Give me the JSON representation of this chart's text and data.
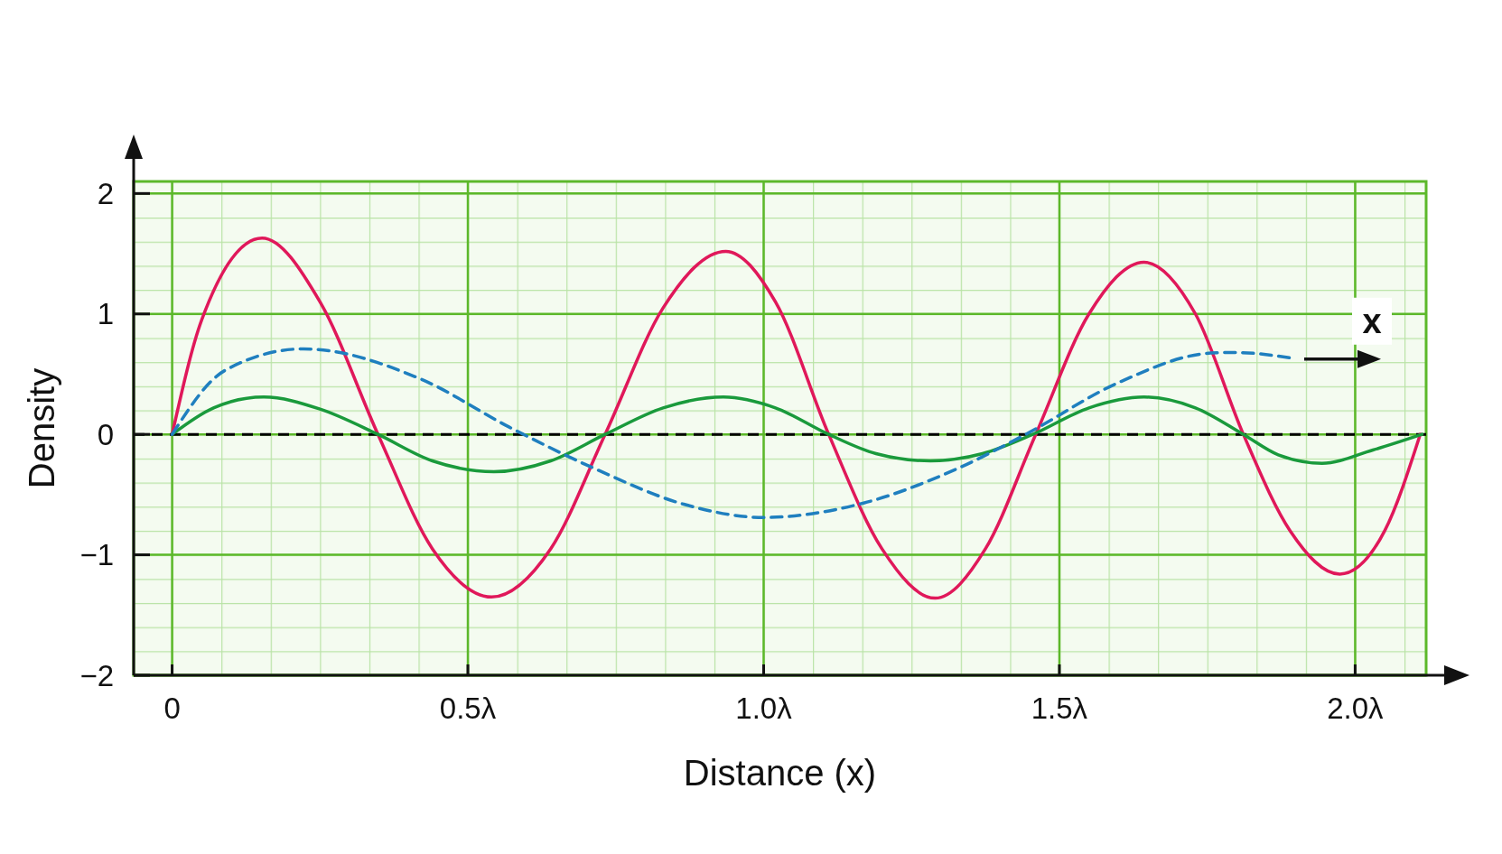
{
  "chart_data": {
    "type": "line",
    "xlabel": "Distance (x)",
    "ylabel": "Density",
    "xlim": [
      -0.065,
      2.12
    ],
    "ylim": [
      -2,
      2.1
    ],
    "xticks": [
      0,
      {
        "value": 0.5,
        "label": "0.5λ"
      },
      {
        "value": 1,
        "label": "1.0λ"
      },
      {
        "value": 1.5,
        "label": "1.5λ"
      },
      {
        "value": 2,
        "label": "2.0λ"
      }
    ],
    "yticks": [
      {
        "value": -2,
        "label": "−2"
      },
      {
        "value": -1,
        "label": "−1"
      },
      0,
      1,
      2
    ],
    "grid": true,
    "annotations": [
      "x"
    ],
    "ref_lines": [
      {
        "axis": "y",
        "value": 0,
        "color": "#000000",
        "line_style": "dashed"
      }
    ],
    "series": [
      {
        "color": "#e0185a",
        "line_style": "solid",
        "x": [
          0,
          0.05,
          0.152,
          0.25,
          0.348,
          0.44,
          0.54,
          0.64,
          0.732,
          0.83,
          0.936,
          1.02,
          1.11,
          1.2,
          1.29,
          1.375,
          1.46,
          1.55,
          1.643,
          1.73,
          1.811,
          1.89,
          1.974,
          2.05,
          2.11
        ],
        "values": [
          0,
          0.95,
          1.63,
          1.1,
          0,
          -0.95,
          -1.35,
          -0.95,
          0,
          1.05,
          1.52,
          1.1,
          0,
          -0.95,
          -1.36,
          -0.95,
          0,
          1.0,
          1.43,
          1.0,
          0,
          -0.8,
          -1.16,
          -0.8,
          0
        ]
      },
      {
        "color": "#1a9a3c",
        "line_style": "solid",
        "x": [
          0,
          0.07,
          0.155,
          0.25,
          0.348,
          0.44,
          0.544,
          0.64,
          0.732,
          0.83,
          0.932,
          1.02,
          1.11,
          1.19,
          1.282,
          1.37,
          1.455,
          1.55,
          1.643,
          1.73,
          1.811,
          1.87,
          1.944,
          2.03,
          2.113
        ],
        "values": [
          0,
          0.22,
          0.31,
          0.21,
          0,
          -0.22,
          -0.31,
          -0.22,
          0,
          0.22,
          0.31,
          0.22,
          0,
          -0.16,
          -0.22,
          -0.16,
          0,
          0.22,
          0.31,
          0.22,
          0,
          -0.17,
          -0.24,
          -0.13,
          0
        ]
      },
      {
        "color": "#1f7fbf",
        "line_style": "dashed",
        "x": [
          0,
          0.089,
          0.222,
          0.42,
          0.57,
          0.717,
          0.865,
          1.0,
          1.169,
          1.325,
          1.443,
          1.6,
          1.756,
          1.796,
          1.897
        ],
        "values": [
          0,
          0.53,
          0.71,
          0.46,
          0.06,
          -0.29,
          -0.58,
          -0.69,
          -0.57,
          -0.29,
          0,
          0.43,
          0.675,
          0.68,
          0.63
        ]
      }
    ]
  }
}
